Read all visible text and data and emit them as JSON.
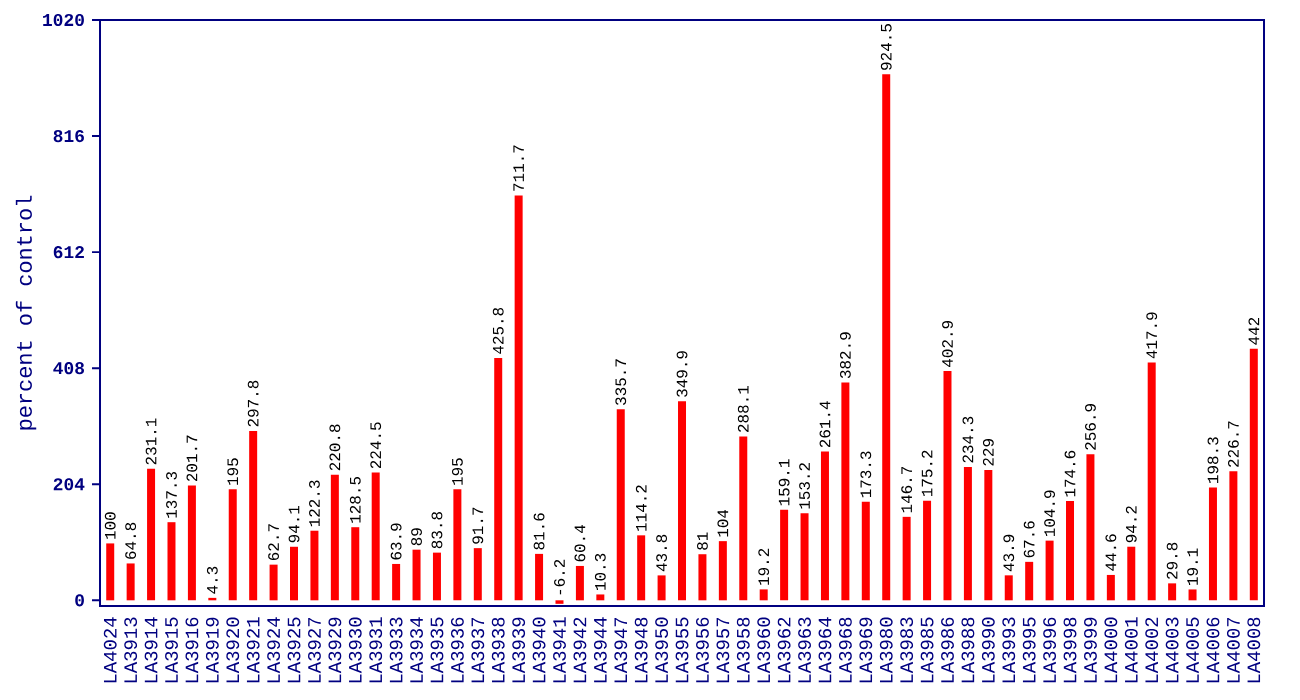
{
  "chart_data": {
    "type": "bar",
    "ylabel": "percent of control",
    "categories": [
      "LA4024",
      "LA3913",
      "LA3914",
      "LA3915",
      "LA3916",
      "LA3919",
      "LA3920",
      "LA3921",
      "LA3924",
      "LA3925",
      "LA3927",
      "LA3929",
      "LA3930",
      "LA3931",
      "LA3933",
      "LA3934",
      "LA3935",
      "LA3936",
      "LA3937",
      "LA3938",
      "LA3939",
      "LA3940",
      "LA3941",
      "LA3942",
      "LA3944",
      "LA3947",
      "LA3948",
      "LA3950",
      "LA3955",
      "LA3956",
      "LA3957",
      "LA3958",
      "LA3960",
      "LA3962",
      "LA3963",
      "LA3964",
      "LA3968",
      "LA3969",
      "LA3980",
      "LA3983",
      "LA3985",
      "LA3986",
      "LA3988",
      "LA3990",
      "LA3993",
      "LA3995",
      "LA3996",
      "LA3998",
      "LA3999",
      "LA4000",
      "LA4001",
      "LA4002",
      "LA4003",
      "LA4005",
      "LA4006",
      "LA4007",
      "LA4008"
    ],
    "values": [
      100,
      64.8,
      231.1,
      137.3,
      201.7,
      4.3,
      195,
      297.8,
      62.7,
      94.1,
      122.3,
      220.8,
      128.5,
      224.5,
      63.9,
      89,
      83.8,
      195,
      91.7,
      425.8,
      711.7,
      81.6,
      -6.2,
      60.4,
      10.3,
      335.7,
      114.2,
      43.8,
      349.9,
      81,
      104,
      288.1,
      19.2,
      159.1,
      153.2,
      261.4,
      382.9,
      173.3,
      924.5,
      146.7,
      175.2,
      402.9,
      234.3,
      229,
      43.9,
      67.6,
      104.9,
      174.6,
      256.9,
      44.6,
      94.2,
      417.9,
      29.8,
      19.1,
      198.3,
      226.7,
      442
    ],
    "color": "#ff0000",
    "ylim": [
      -10,
      1020
    ],
    "yticks": [
      0,
      204,
      408,
      612,
      816,
      1020
    ],
    "data_labels": true
  }
}
